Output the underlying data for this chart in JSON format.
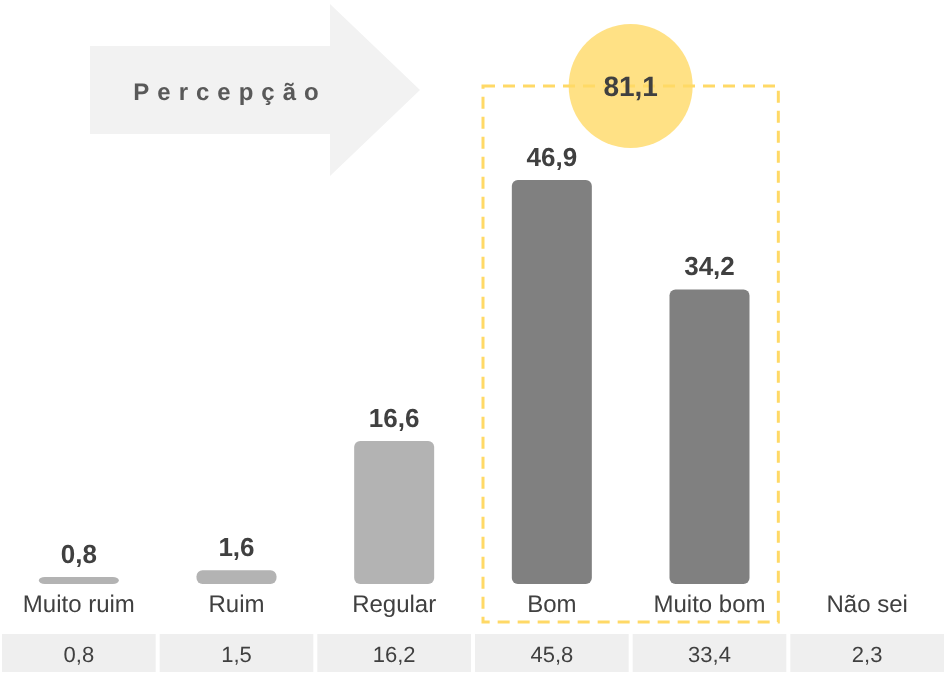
{
  "chart_data": {
    "type": "bar",
    "title": "Percepção",
    "categories": [
      "Muito ruim",
      "Ruim",
      "Regular",
      "Bom",
      "Muito bom",
      "Não sei"
    ],
    "values": [
      0.8,
      1.6,
      16.6,
      46.9,
      34.2,
      null
    ],
    "colors": [
      "#b3b3b3",
      "#b3b3b3",
      "#b3b3b3",
      "#808080",
      "#808080",
      null
    ],
    "value_labels": [
      "0,8",
      "1,6",
      "16,6",
      "46,9",
      "34,2",
      null
    ],
    "annotations": [
      "0,8",
      "1,5",
      "16,2",
      "45,8",
      "33,4",
      "2,3",
      "81,1"
    ]
  }
}
